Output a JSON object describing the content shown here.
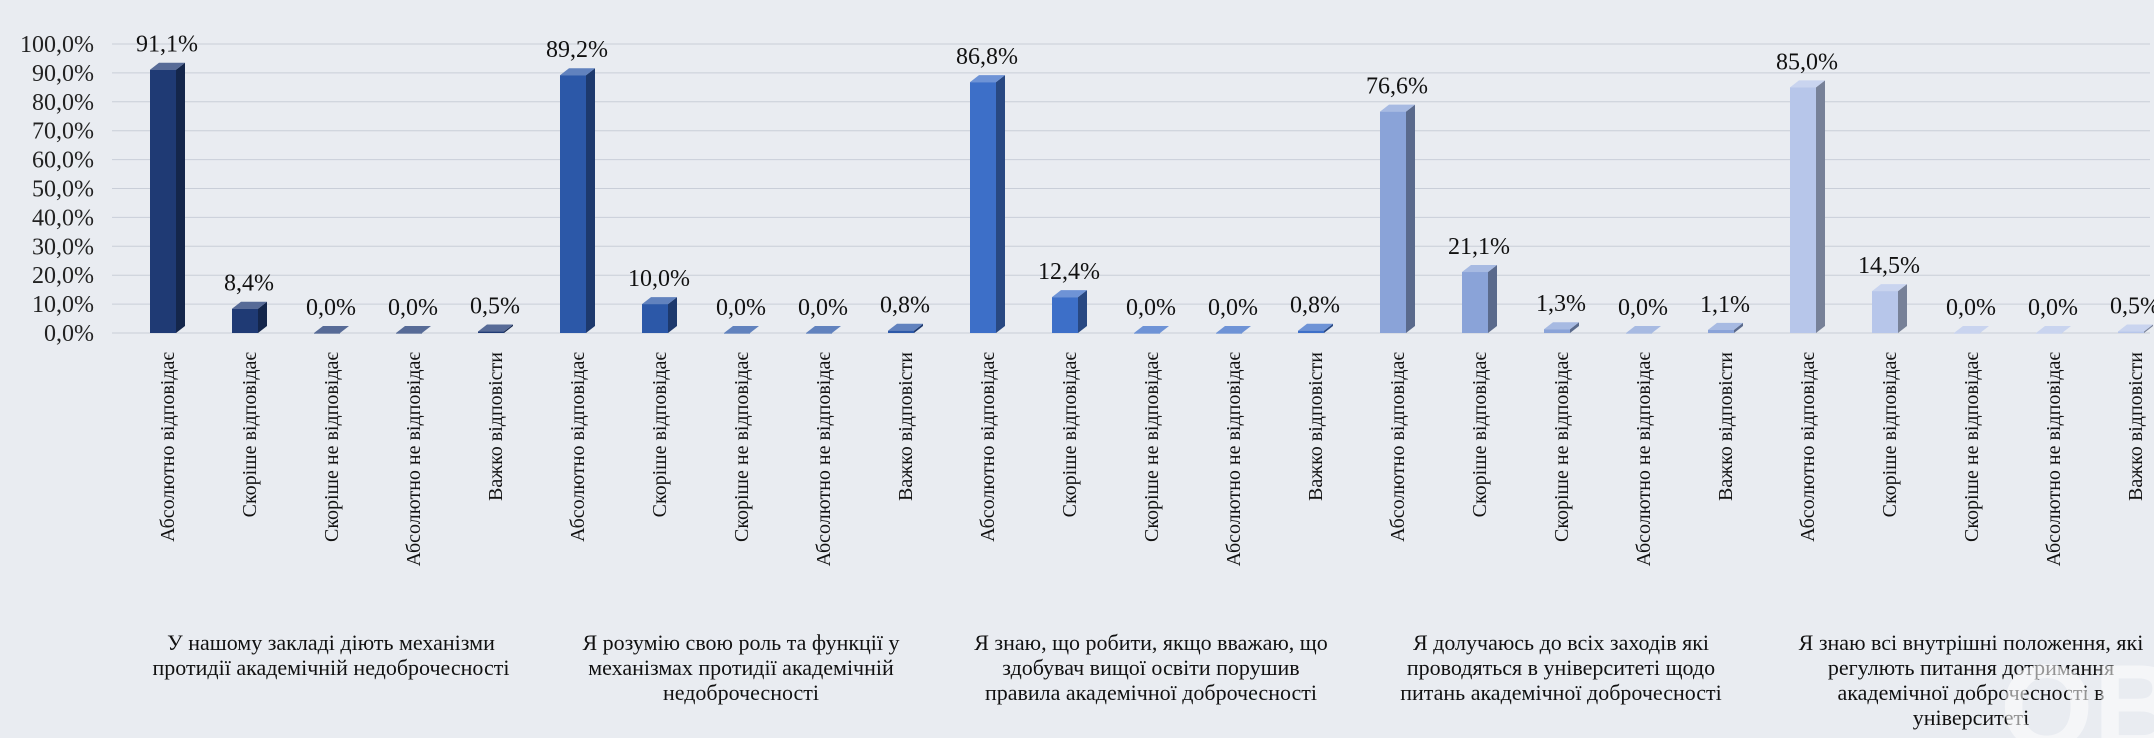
{
  "chart_data": {
    "type": "bar",
    "style": "3d-clustered-column",
    "ylim": [
      0,
      100
    ],
    "yticks": [
      "0,0%",
      "10,0%",
      "20,0%",
      "30,0%",
      "40,0%",
      "50,0%",
      "60,0%",
      "70,0%",
      "80,0%",
      "90,0%",
      "100,0%"
    ],
    "grid": true,
    "legend": "none",
    "categories": [
      "Абсолютно відповідає",
      "Скоріше відповідає",
      "Скоріше не відповідає",
      "Абсолютно не відповідає",
      "Важко відповісти"
    ],
    "groups": [
      {
        "label_lines": [
          "У нашому закладі діють механізми",
          "протидії академічній недоброчесності"
        ],
        "values": [
          91.1,
          8.4,
          0.0,
          0.0,
          0.5
        ],
        "labels": [
          "91,1%",
          "8,4%",
          "0,0%",
          "0,0%",
          "0,5%"
        ],
        "color": "#1f3a74"
      },
      {
        "label_lines": [
          "Я розумію свою роль та функції у",
          "механізмах протидії академічній",
          "недоброчесності"
        ],
        "values": [
          89.2,
          10.0,
          0.0,
          0.0,
          0.8
        ],
        "labels": [
          "89,2%",
          "10,0%",
          "0,0%",
          "0,0%",
          "0,8%"
        ],
        "color": "#2c58a8"
      },
      {
        "label_lines": [
          "Я знаю, що робити, якщо вважаю, що",
          "здобувач вищої освіти порушив",
          "правила академічної доброчесності"
        ],
        "values": [
          86.8,
          12.4,
          0.0,
          0.0,
          0.8
        ],
        "labels": [
          "86,8%",
          "12,4%",
          "0,0%",
          "0,0%",
          "0,8%"
        ],
        "color": "#3d6fc8"
      },
      {
        "label_lines": [
          "Я долучаюсь до всіх заходів які",
          "проводяться в університеті щодо",
          "питань академічної доброчесності"
        ],
        "values": [
          76.6,
          21.1,
          1.3,
          0.0,
          1.1
        ],
        "labels": [
          "76,6%",
          "21,1%",
          "1,3%",
          "0,0%",
          "1,1%"
        ],
        "color": "#8aa3d8"
      },
      {
        "label_lines": [
          "Я знаю всі внутрішні положення, які",
          "регулють питання дотримання",
          "академічної доброчесності в",
          "університеті"
        ],
        "values": [
          85.0,
          14.5,
          0.0,
          0.0,
          0.5
        ],
        "labels": [
          "85,0%",
          "14,5%",
          "0,0%",
          "0,0%",
          "0,5%"
        ],
        "color": "#b7c6ea"
      }
    ]
  },
  "watermark": {
    "text": "QB",
    "color": "#ffffff"
  }
}
